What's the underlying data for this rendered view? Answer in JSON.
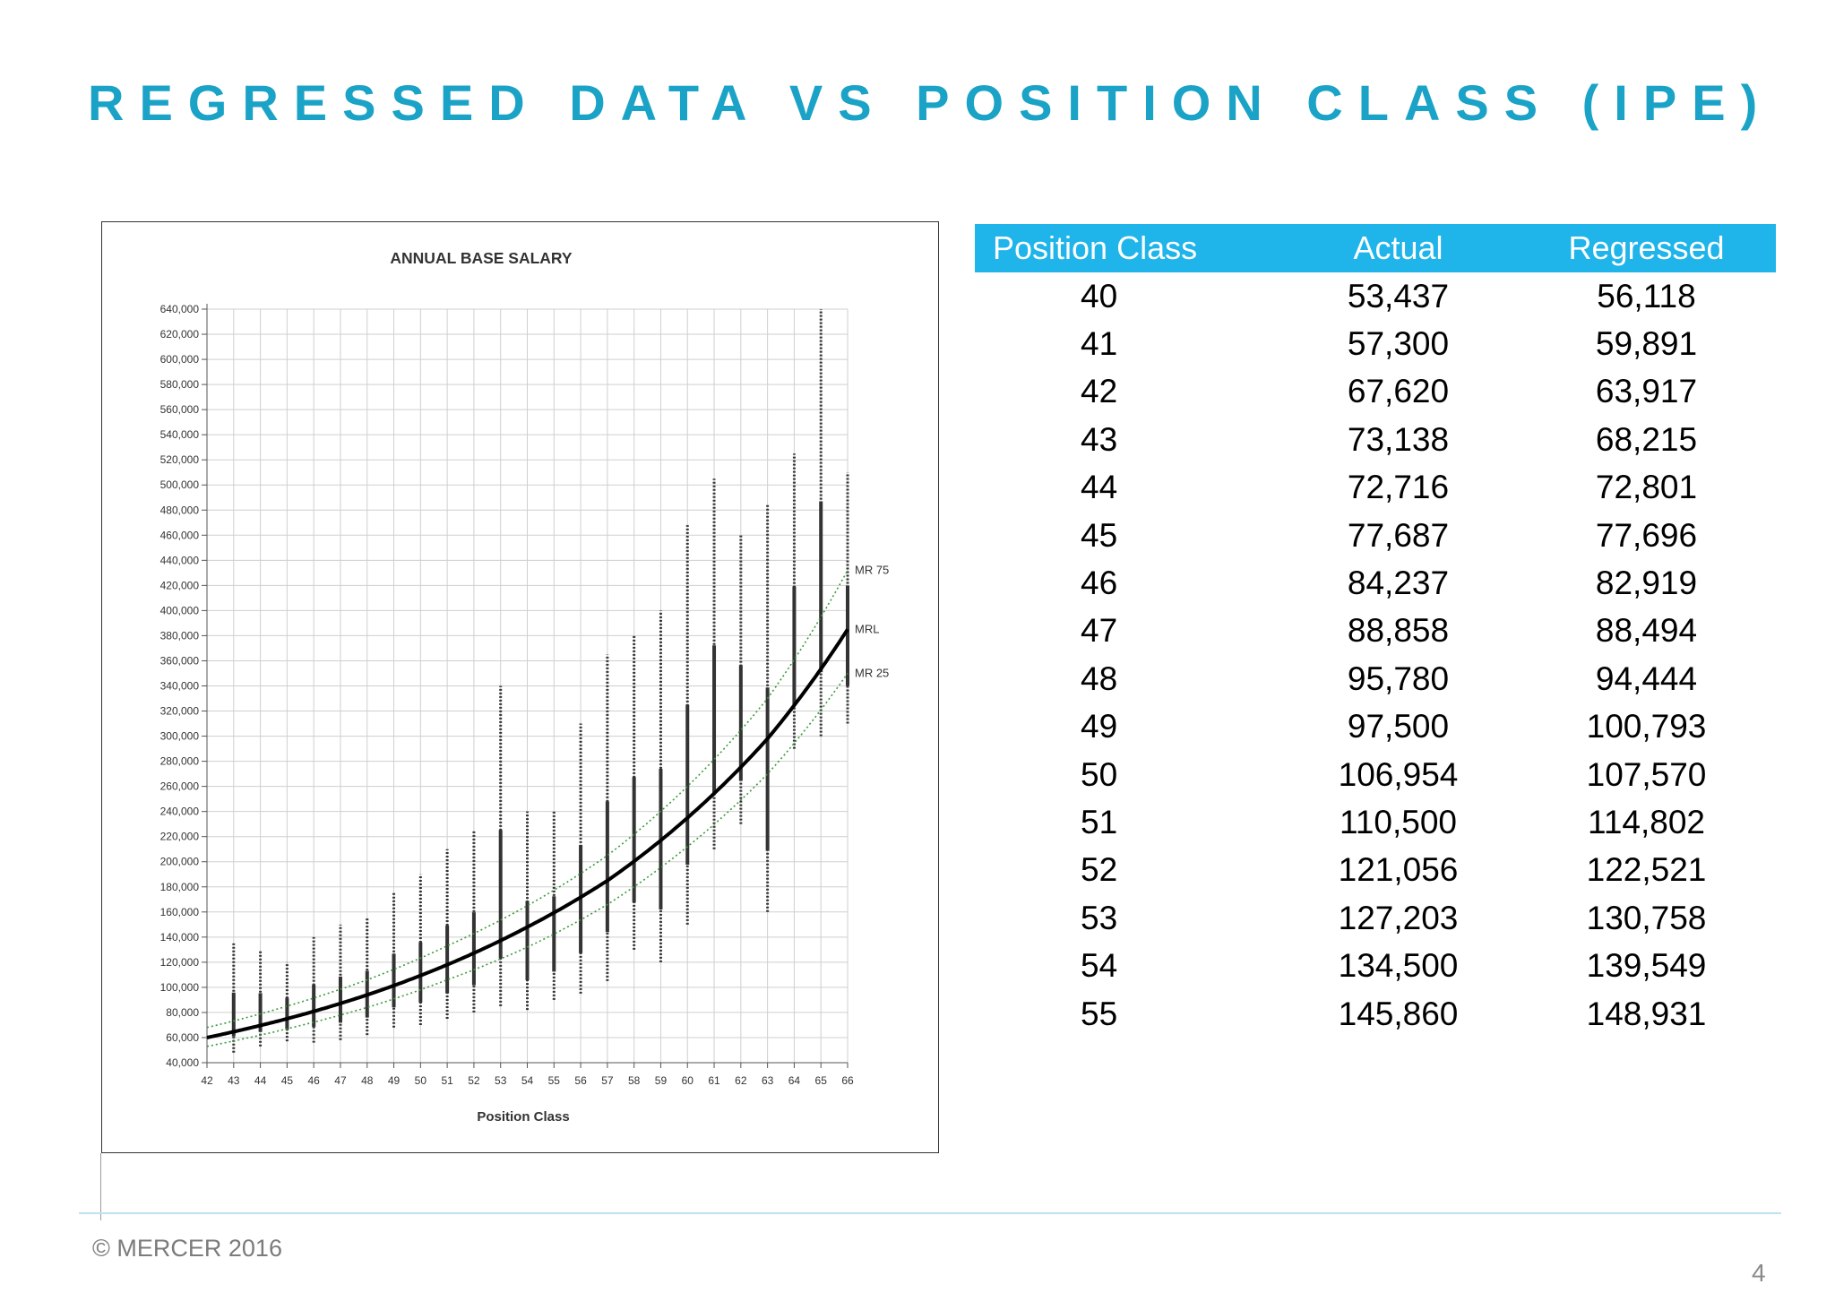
{
  "slide": {
    "title": "REGRESSED DATA VS POSITION CLASS (IPE)",
    "footer": "© MERCER 2016",
    "page_number": "4",
    "accent_color": "#1aa3c6",
    "header_color": "#1fb4ea"
  },
  "table": {
    "headers": [
      "Position Class",
      "Actual",
      "Regressed"
    ],
    "rows": [
      [
        "40",
        "53,437",
        "56,118"
      ],
      [
        "41",
        "57,300",
        "59,891"
      ],
      [
        "42",
        "67,620",
        "63,917"
      ],
      [
        "43",
        "73,138",
        "68,215"
      ],
      [
        "44",
        "72,716",
        "72,801"
      ],
      [
        "45",
        "77,687",
        "77,696"
      ],
      [
        "46",
        "84,237",
        "82,919"
      ],
      [
        "47",
        "88,858",
        "88,494"
      ],
      [
        "48",
        "95,780",
        "94,444"
      ],
      [
        "49",
        "97,500",
        "100,793"
      ],
      [
        "50",
        "106,954",
        "107,570"
      ],
      [
        "51",
        "110,500",
        "114,802"
      ],
      [
        "52",
        "121,056",
        "122,521"
      ],
      [
        "53",
        "127,203",
        "130,758"
      ],
      [
        "54",
        "134,500",
        "139,549"
      ],
      [
        "55",
        "145,860",
        "148,931"
      ]
    ]
  },
  "chart_data": {
    "type": "scatter",
    "title": "ANNUAL BASE SALARY",
    "xlabel": "Position Class",
    "ylabel": "",
    "x_ticks": [
      "42",
      "43",
      "44",
      "45",
      "46",
      "47",
      "48",
      "49",
      "50",
      "51",
      "52",
      "53",
      "54",
      "55",
      "56",
      "57",
      "58",
      "59",
      "60",
      "61",
      "62",
      "63",
      "64",
      "65",
      "66"
    ],
    "y_ticks": [
      "40,000",
      "60,000",
      "80,000",
      "100,000",
      "120,000",
      "140,000",
      "160,000",
      "180,000",
      "200,000",
      "220,000",
      "240,000",
      "260,000",
      "280,000",
      "300,000",
      "320,000",
      "340,000",
      "360,000",
      "380,000",
      "400,000",
      "420,000",
      "440,000",
      "460,000",
      "480,000",
      "500,000",
      "520,000",
      "540,000",
      "560,000",
      "580,000",
      "600,000",
      "620,000",
      "640,000"
    ],
    "xlim": [
      42,
      66
    ],
    "ylim": [
      40000,
      640000
    ],
    "grid": true,
    "series": [
      {
        "name": "MR 75",
        "style": "dotted",
        "color": "#3a9a3a",
        "x": [
          42,
          45,
          48,
          51,
          54,
          57,
          60,
          63,
          66
        ],
        "y": [
          68000,
          85000,
          106000,
          133000,
          165000,
          205000,
          260000,
          330000,
          432000
        ]
      },
      {
        "name": "MRL",
        "style": "solid",
        "color": "#000000",
        "x": [
          42,
          45,
          48,
          51,
          54,
          57,
          60,
          63,
          66
        ],
        "y": [
          60000,
          75000,
          94000,
          118000,
          148000,
          185000,
          235000,
          298000,
          385000
        ]
      },
      {
        "name": "MR 25",
        "style": "dotted",
        "color": "#3a9a3a",
        "x": [
          42,
          45,
          48,
          51,
          54,
          57,
          60,
          63,
          66
        ],
        "y": [
          53000,
          67000,
          84000,
          106000,
          132000,
          166000,
          212000,
          270000,
          350000
        ]
      },
      {
        "name": "",
        "style": "points",
        "color": "#333333",
        "x": [
          43,
          44,
          45,
          46,
          47,
          48,
          49,
          50,
          51,
          52,
          53,
          54,
          55,
          56,
          57,
          58,
          59,
          60,
          61,
          62,
          63,
          64,
          65,
          66
        ],
        "y_min": [
          48000,
          53000,
          57000,
          56000,
          58000,
          62000,
          68000,
          70000,
          75000,
          80000,
          85000,
          82000,
          90000,
          95000,
          105000,
          130000,
          120000,
          150000,
          210000,
          230000,
          160000,
          290000,
          300000,
          310000
        ],
        "y_max": [
          135000,
          130000,
          120000,
          140000,
          150000,
          155000,
          175000,
          190000,
          210000,
          225000,
          340000,
          240000,
          240000,
          310000,
          365000,
          380000,
          400000,
          468000,
          505000,
          460000,
          485000,
          525000,
          640000,
          510000
        ]
      }
    ]
  }
}
